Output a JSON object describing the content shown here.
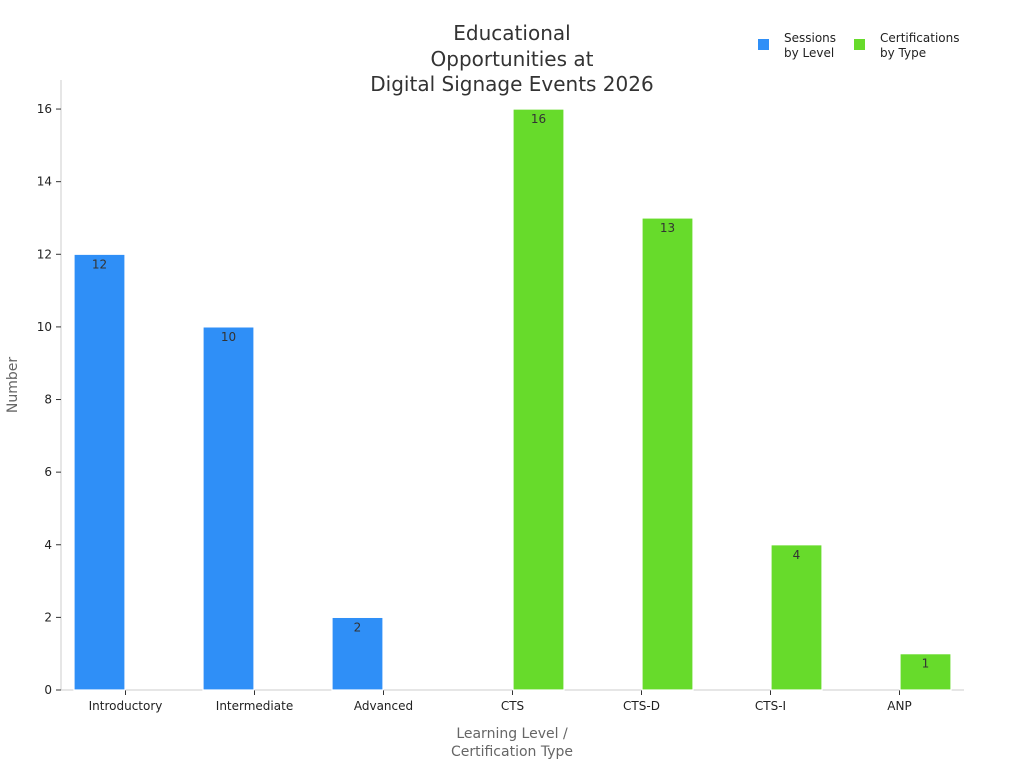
{
  "chart_data": {
    "type": "bar",
    "title_lines": [
      "Educational",
      "Opportunities at",
      "Digital Signage Events 2026"
    ],
    "xlabel_lines": [
      "Learning Level /",
      "Certification Type"
    ],
    "ylabel": "Number",
    "categories": [
      "Introductory",
      "Intermediate",
      "Advanced",
      "CTS",
      "CTS-D",
      "CTS-I",
      "ANP"
    ],
    "ylim": [
      0,
      16.8
    ],
    "yticks": [
      0,
      2,
      4,
      6,
      8,
      10,
      12,
      14,
      16
    ],
    "grid": false,
    "legend_position": "top-right",
    "series": [
      {
        "name_lines": [
          "Sessions",
          "by Level"
        ],
        "color": "#2f8ff7",
        "values": [
          12,
          10,
          2,
          null,
          null,
          null,
          null
        ]
      },
      {
        "name_lines": [
          "Certifications",
          "by Type"
        ],
        "color": "#67db2b",
        "values": [
          null,
          null,
          null,
          16,
          13,
          4,
          1
        ]
      }
    ]
  }
}
